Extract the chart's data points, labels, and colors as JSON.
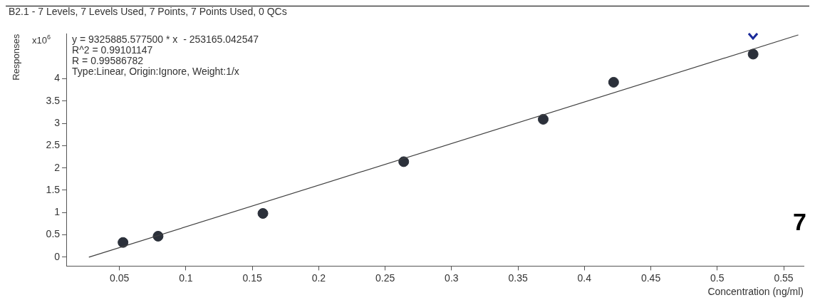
{
  "chart_data": {
    "type": "scatter",
    "title": "B2.1 - 7 Levels, 7 Levels Used, 7 Points, 7 Points Used, 0 QCs",
    "ylabel": "Responses",
    "xlabel": "Concentration (ng/ml)",
    "annotations": [
      "x10$^{6}$",
      "y = 9325885.577500 * x  - 253165.042547",
      "R^2 = 0.99101147",
      "R = 0.99586782",
      "Type:Linear, Origin:Ignore, Weight:1/x",
      "7"
    ],
    "series": [
      {
        "type": "line",
        "color": "#404040",
        "marker": "none",
        "x": [
          0.027,
          0.561
        ],
        "values": [
          0,
          4.98
        ]
      },
      {
        "color": "#2b303a",
        "marker": "circle",
        "x": [
          0.0527,
          0.0791,
          0.158,
          0.264,
          0.369,
          0.422,
          0.527
        ],
        "values": [
          0.33,
          0.47,
          0.98,
          2.14,
          3.09,
          3.92,
          4.55
        ]
      }
    ],
    "xlim": [
      0.01,
      0.565
    ],
    "ylim": [
      -0.2,
      5.0
    ],
    "xticks": [
      0.05,
      0.1,
      0.15,
      0.2,
      0.25,
      0.3,
      0.35,
      0.4,
      0.45,
      0.5,
      0.55
    ],
    "yticks": [
      0,
      0.5,
      1,
      1.5,
      2,
      2.5,
      3,
      3.5,
      4
    ],
    "grid": false,
    "legend": false
  }
}
